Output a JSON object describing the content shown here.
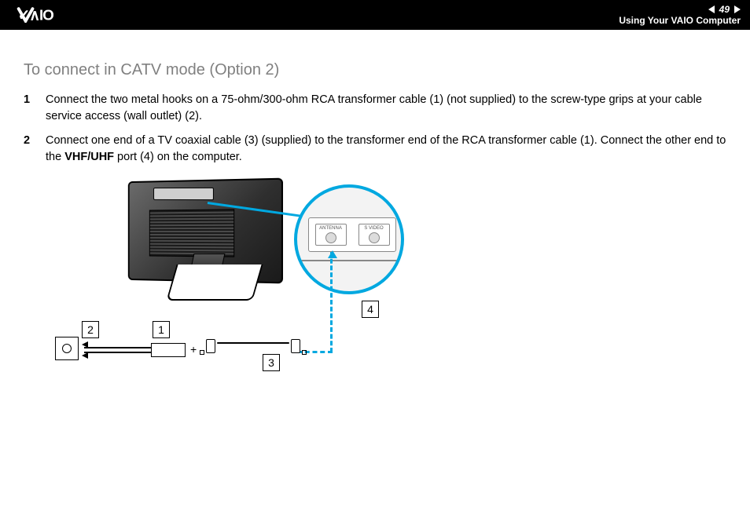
{
  "header": {
    "page_number": "49",
    "section": "Using Your VAIO Computer"
  },
  "heading": "To connect in CATV mode (Option 2)",
  "steps": [
    "Connect the two metal hooks on a 75-ohm/300-ohm RCA transformer cable (1) (not supplied) to the screw-type grips at your cable service access (wall outlet) (2).",
    "Connect one end of a TV coaxial cable (3) (supplied) to the transformer end of the RCA transformer cable (1). Connect the other end to the <b>VHF/UHF</b> port (4) on the computer."
  ],
  "callouts": {
    "1": "1",
    "2": "2",
    "3": "3",
    "4": "4"
  },
  "detail_labels": {
    "antenna": "ANTENNA",
    "svideo": "S VIDEO"
  },
  "colors": {
    "accent": "#00a8e0",
    "header_bg": "#000000",
    "heading_text": "#808080",
    "body_text": "#000000"
  }
}
